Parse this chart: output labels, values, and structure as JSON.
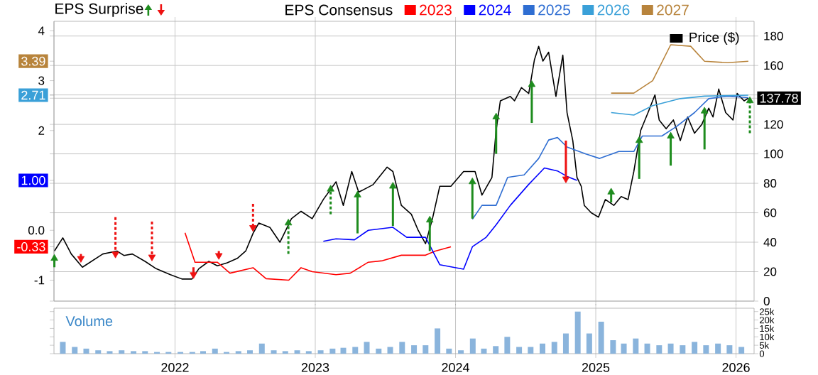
{
  "chart_data": [
    {
      "type": "line",
      "title": "EPS Surprise",
      "legend_title": "EPS Consensus",
      "legend": "top",
      "grid": true,
      "tick_labels": "y",
      "xlim": [
        "2021-02-20",
        "2026-02-17"
      ],
      "xticks": [
        "2022",
        "2023",
        "2024",
        "2025",
        "2026"
      ],
      "ylim": [
        -1.42,
        4.19
      ],
      "yticks": [
        -1,
        {
          "value": -0.33,
          "label": "-0.33"
        },
        {
          "value": 0,
          "label": "0.0"
        },
        {
          "value": 1,
          "label": "1.00"
        },
        2,
        {
          "value": 2.71,
          "label": "2.71"
        },
        3,
        {
          "value": 3.39,
          "label": "3.39"
        },
        4
      ],
      "y2lim": [
        0,
        190
      ],
      "y2ticks": [
        0,
        20,
        40,
        60,
        80,
        100,
        120,
        {
          "value": 137.78,
          "label": "137.78"
        },
        {
          "value": 140,
          "label": null
        },
        160,
        180
      ],
      "series": [
        {
          "name": "2023",
          "color": "#ff0000",
          "x": [
            "2022-01-27",
            "2022-02-22",
            "2022-04-21",
            "2022-05-24",
            "2022-07-23",
            "2022-08-26",
            "2022-10-24",
            "2022-11-25",
            "2022-12-24",
            "2023-02-24",
            "2023-04-02",
            "2023-05-19",
            "2023-06-25",
            "2023-08-13",
            "2023-10-15",
            "2023-11-08",
            "2023-12-20"
          ],
          "values": [
            -0.05,
            -0.64,
            -0.64,
            -0.86,
            -0.75,
            -0.97,
            -1.0,
            -0.75,
            -0.83,
            -0.89,
            -0.86,
            -0.64,
            -0.61,
            -0.5,
            -0.5,
            -0.42,
            -0.33
          ]
        },
        {
          "name": "2024",
          "color": "#0000ff",
          "x": [
            "2023-01-22",
            "2023-02-24",
            "2023-04-13",
            "2023-05-19",
            "2023-07-22",
            "2023-08-27",
            "2023-10-15",
            "2023-11-21",
            "2024-01-22",
            "2024-02-14",
            "2024-03-21",
            "2024-04-16",
            "2024-05-23",
            "2024-07-10",
            "2024-08-20",
            "2024-09-23",
            "2024-10-18",
            "2024-11-13"
          ],
          "values": [
            -0.22,
            -0.17,
            -0.19,
            0.0,
            0.06,
            -0.14,
            -0.14,
            -0.69,
            -0.78,
            -0.33,
            -0.14,
            0.11,
            0.5,
            0.92,
            1.25,
            1.19,
            1.08,
            1.0
          ]
        },
        {
          "name": "2025",
          "color": "#2f6ed2",
          "x": [
            "2024-02-14",
            "2024-03-10",
            "2024-04-16",
            "2024-05-16",
            "2024-06-28",
            "2024-08-05",
            "2024-08-31",
            "2024-09-23",
            "2024-10-18",
            "2024-12-06",
            "2025-01-11",
            "2025-03-02",
            "2025-04-10",
            "2025-05-02",
            "2025-06-22",
            "2025-07-30",
            "2025-09-15",
            "2025-10-22",
            "2025-12-10",
            "2026-02-02"
          ],
          "values": [
            0.22,
            0.5,
            0.5,
            1.06,
            1.11,
            1.44,
            1.81,
            1.86,
            1.67,
            1.53,
            1.44,
            1.58,
            1.58,
            1.89,
            1.89,
            2.08,
            2.36,
            2.64,
            2.69,
            2.66
          ]
        },
        {
          "name": "2026",
          "color": "#3aa0d8",
          "x": [
            "2025-02-10",
            "2025-04-10",
            "2025-05-29",
            "2025-08-09",
            "2025-10-11",
            "2026-02-02"
          ],
          "values": [
            2.36,
            2.31,
            2.5,
            2.64,
            2.69,
            2.71
          ]
        },
        {
          "name": "2027",
          "color": "#b8843c",
          "x": [
            "2025-02-10",
            "2025-04-10",
            "2025-05-29",
            "2025-07-15",
            "2025-09-05",
            "2025-10-11",
            "2025-12-10",
            "2026-02-02"
          ],
          "values": [
            2.75,
            2.75,
            3.0,
            3.72,
            3.69,
            3.39,
            3.36,
            3.39
          ]
        },
        {
          "name": "Price ($)",
          "color": "#000000",
          "axis": "y2",
          "x": [
            "2021-02-21",
            "2021-03-15",
            "2021-04-06",
            "2021-05-05",
            "2021-06-27",
            "2021-08-03",
            "2021-08-21",
            "2021-09-12",
            "2021-10-15",
            "2021-11-13",
            "2021-12-20",
            "2022-01-19",
            "2022-02-14",
            "2022-03-04",
            "2022-03-30",
            "2022-04-21",
            "2022-05-17",
            "2022-06-12",
            "2022-07-04",
            "2022-07-23",
            "2022-08-07",
            "2022-09-05",
            "2022-10-01",
            "2022-10-31",
            "2022-11-25",
            "2022-12-24",
            "2023-01-22",
            "2023-02-24",
            "2023-03-15",
            "2023-04-06",
            "2023-04-24",
            "2023-05-31",
            "2023-07-07",
            "2023-07-22",
            "2023-08-13",
            "2023-09-08",
            "2023-09-26",
            "2023-10-15",
            "2023-11-02",
            "2023-11-21",
            "2023-12-20",
            "2024-01-22",
            "2024-02-21",
            "2024-03-10",
            "2024-04-05",
            "2024-04-16",
            "2024-04-27",
            "2024-05-23",
            "2024-06-03",
            "2024-06-21",
            "2024-07-10",
            "2024-07-25",
            "2024-08-05",
            "2024-08-16",
            "2024-08-31",
            "2024-09-19",
            "2024-10-07",
            "2024-10-18",
            "2024-11-02",
            "2024-11-13",
            "2024-11-24",
            "2024-12-02",
            "2024-12-20",
            "2025-01-08",
            "2025-01-26",
            "2025-02-17",
            "2025-03-08",
            "2025-03-26",
            "2025-04-10",
            "2025-04-28",
            "2025-05-17",
            "2025-06-04",
            "2025-06-15",
            "2025-07-03",
            "2025-07-22",
            "2025-08-09",
            "2025-08-28",
            "2025-09-15",
            "2025-10-04",
            "2025-10-22",
            "2025-11-02",
            "2025-11-17",
            "2025-12-05",
            "2025-12-24",
            "2026-01-04",
            "2026-01-22",
            "2026-02-02"
          ],
          "values": [
            34,
            43,
            32,
            23,
            32,
            34,
            31,
            32,
            27,
            22,
            18,
            15,
            15,
            22,
            27,
            24,
            26,
            29,
            34,
            46,
            53,
            50,
            40,
            56,
            61,
            56,
            69,
            81,
            65,
            88,
            74,
            79,
            91,
            88,
            65,
            59,
            48,
            39,
            56,
            78,
            78,
            88,
            88,
            72,
            84,
            116,
            136,
            139,
            136,
            145,
            141,
            164,
            173,
            163,
            169,
            139,
            167,
            128,
            109,
            84,
            78,
            65,
            60,
            57,
            69,
            65,
            71,
            69,
            88,
            116,
            128,
            140,
            123,
            117,
            123,
            109,
            125,
            114,
            120,
            131,
            125,
            144,
            128,
            123,
            141,
            136,
            137.78
          ]
        },
        {
          "type": "scatter",
          "color": "#1e8c1e",
          "axis": "y2",
          "marker": "triangle",
          "line_style": "solid",
          "x": [
            "2021-02-21",
            "2023-04-21",
            "2023-07-22",
            "2023-10-26",
            "2024-02-14",
            "2024-04-16",
            "2024-07-18",
            "2025-02-10",
            "2025-04-24",
            "2025-07-15",
            "2025-10-11"
          ],
          "values": [
            29,
            72,
            78,
            55,
            81,
            125,
            147,
            74,
            109,
            112,
            129
          ],
          "errors": [
            [
              23,
              29
            ],
            [
              46,
              72
            ],
            [
              51,
              78
            ],
            [
              34,
              55
            ],
            [
              56,
              81
            ],
            [
              100,
              125
            ],
            [
              121,
              147
            ],
            [
              67,
              74
            ],
            [
              83,
              109
            ],
            [
              92,
              112
            ],
            [
              103,
              129
            ]
          ]
        },
        {
          "type": "scatter",
          "color": "#1e8c1e",
          "axis": "y2",
          "marker": "triangle",
          "line_style": "dashed",
          "x": [
            "2022-10-23",
            "2023-02-10",
            "2026-02-06"
          ],
          "values": [
            53,
            76,
            136
          ],
          "errors": [
            [
              32,
              53
            ],
            [
              59,
              76
            ],
            [
              114,
              136
            ]
          ]
        },
        {
          "type": "scatter",
          "color": "#ee1111",
          "axis": "y2",
          "marker": "triangle",
          "line_style": "solid",
          "x": [
            "2021-05-01",
            "2022-02-18",
            "2022-04-25",
            "2024-10-15"
          ],
          "values": [
            29,
            18,
            31,
            83
          ],
          "errors": [
            [
              29,
              32
            ],
            [
              18,
              23
            ],
            [
              31,
              34
            ],
            [
              83,
              109
            ]
          ]
        },
        {
          "type": "scatter",
          "color": "#ee1111",
          "axis": "y2",
          "marker": "triangle",
          "line_style": "dashed",
          "x": [
            "2021-07-30",
            "2021-11-02",
            "2022-07-23"
          ],
          "values": [
            32,
            30,
            50
          ],
          "errors": [
            [
              32,
              57
            ],
            [
              30,
              54
            ],
            [
              50,
              66
            ]
          ]
        }
      ]
    },
    {
      "type": "bar",
      "title": "Volume",
      "grid": "x",
      "xlim": [
        "2021-02-20",
        "2026-02-17"
      ],
      "xticks": [
        "2022",
        "2023",
        "2024",
        "2025",
        "2026"
      ],
      "y2lim": [
        0,
        27000
      ],
      "y2ticks": [
        0,
        {
          "value": 5000,
          "label": "5k"
        },
        {
          "value": 10000,
          "label": "10k"
        },
        {
          "value": 15000,
          "label": "15k"
        },
        {
          "value": 20000,
          "label": "20k"
        },
        {
          "value": 25000,
          "label": "25k"
        }
      ],
      "series": [
        {
          "color": "#8ab4dc",
          "axis": "y2",
          "x": [
            "2021-03-15",
            "2021-04-15",
            "2021-05-15",
            "2021-06-15",
            "2021-07-15",
            "2021-08-15",
            "2021-09-15",
            "2021-10-15",
            "2021-11-15",
            "2021-12-15",
            "2022-01-15",
            "2022-02-15",
            "2022-03-15",
            "2022-04-15",
            "2022-05-15",
            "2022-06-15",
            "2022-07-15",
            "2022-08-15",
            "2022-09-15",
            "2022-10-15",
            "2022-11-15",
            "2022-12-15",
            "2023-01-15",
            "2023-02-15",
            "2023-03-15",
            "2023-04-15",
            "2023-05-15",
            "2023-06-15",
            "2023-07-15",
            "2023-08-15",
            "2023-09-15",
            "2023-10-15",
            "2023-11-15",
            "2023-12-15",
            "2024-01-15",
            "2024-02-15",
            "2024-03-15",
            "2024-04-15",
            "2024-05-15",
            "2024-06-15",
            "2024-07-15",
            "2024-08-15",
            "2024-09-15",
            "2024-10-15",
            "2024-11-15",
            "2024-12-15",
            "2025-01-15",
            "2025-02-15",
            "2025-03-15",
            "2025-04-15",
            "2025-05-15",
            "2025-06-15",
            "2025-07-15",
            "2025-08-15",
            "2025-09-15",
            "2025-10-15",
            "2025-11-15",
            "2025-12-15",
            "2026-01-15"
          ],
          "values": [
            7000,
            4000,
            3000,
            2000,
            1500,
            2000,
            1500,
            1500,
            1000,
            1000,
            1000,
            1000,
            1500,
            3000,
            1000,
            1500,
            2000,
            6000,
            2000,
            1500,
            2000,
            1500,
            2000,
            3000,
            3500,
            4000,
            7000,
            3000,
            4000,
            7000,
            5000,
            5000,
            15000,
            3000,
            2000,
            9000,
            3000,
            4500,
            10000,
            4000,
            4000,
            6000,
            7000,
            12000,
            25000,
            12000,
            19000,
            8000,
            6000,
            9000,
            6000,
            5000,
            6000,
            5000,
            7000,
            5000,
            6000,
            5000,
            4000
          ]
        }
      ]
    }
  ]
}
